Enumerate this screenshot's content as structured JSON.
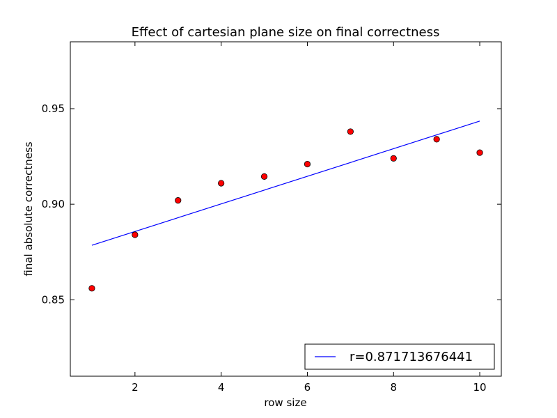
{
  "chart_data": {
    "type": "scatter",
    "title": "Effect of cartesian plane size on final correctness",
    "xlabel": "row size",
    "ylabel": "final absolute correctness",
    "xlim": [
      0.5,
      10.5
    ],
    "ylim": [
      0.81,
      0.985
    ],
    "xticks": [
      {
        "value": 2,
        "label": "2"
      },
      {
        "value": 4,
        "label": "4"
      },
      {
        "value": 6,
        "label": "6"
      },
      {
        "value": 8,
        "label": "8"
      },
      {
        "value": 10,
        "label": "10"
      }
    ],
    "yticks": [
      {
        "value": 0.85,
        "label": "0.85"
      },
      {
        "value": 0.9,
        "label": "0.90"
      },
      {
        "value": 0.95,
        "label": "0.95"
      }
    ],
    "grid": false,
    "legend": {
      "placement": "lower-right",
      "entries": [
        {
          "label": "r=0.871713676441",
          "series": "fit"
        }
      ]
    },
    "series": [
      {
        "key": "points",
        "kind": "scatter",
        "color": "#ff0000",
        "edge_color": "#000000",
        "x": [
          1,
          2,
          3,
          4,
          5,
          6,
          7,
          8,
          9,
          10
        ],
        "y": [
          0.856,
          0.884,
          0.902,
          0.911,
          0.9145,
          0.921,
          0.938,
          0.924,
          0.934,
          0.927
        ]
      },
      {
        "key": "fit",
        "kind": "line",
        "color": "#0000ff",
        "x": [
          1,
          10
        ],
        "y": [
          0.8785,
          0.9435
        ]
      }
    ]
  }
}
